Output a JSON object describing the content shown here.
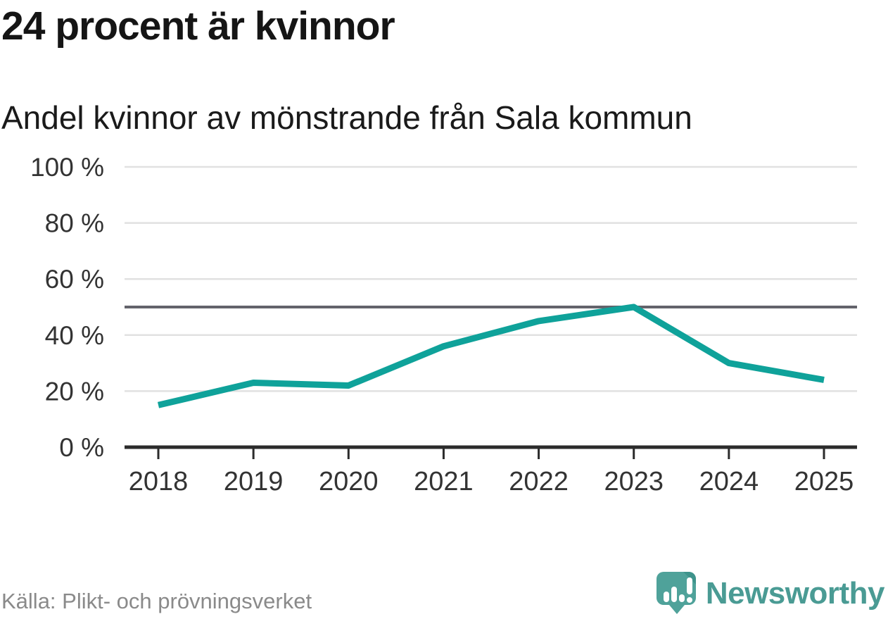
{
  "header": {
    "title": "24 procent är kvinnor",
    "subtitle": "Andel kvinnor av mönstrande från Sala kommun"
  },
  "footer": {
    "source": "Källa: Plikt- och prövningsverket",
    "brand_name": "Newsworthy"
  },
  "colors": {
    "line": "#0FA29A",
    "grid": "#E1E1E1",
    "reference_line": "#63636B",
    "axis": "#2B2B2B",
    "tick_label": "#333333",
    "title_text": "#151515",
    "source_text": "#8A8A8A",
    "brand_text": "#4A9B94",
    "brand_icon": "#4FA29A",
    "brand_icon_fold": "#3E938B"
  },
  "chart_data": {
    "type": "line",
    "title": "24 procent är kvinnor",
    "subtitle": "Andel kvinnor av mönstrande från Sala kommun",
    "x": [
      2018,
      2019,
      2020,
      2021,
      2022,
      2023,
      2024,
      2025
    ],
    "series": [
      {
        "name": "Andel kvinnor av mönstrande",
        "values": [
          15,
          23,
          22,
          36,
          45,
          50,
          30,
          24
        ]
      }
    ],
    "ylim": [
      0,
      100
    ],
    "yticks": [
      0,
      20,
      40,
      60,
      80,
      100
    ],
    "ytick_suffix": " %",
    "reference_line": 50,
    "grid": true,
    "legend_position": "none",
    "xlabel": "",
    "ylabel": ""
  }
}
